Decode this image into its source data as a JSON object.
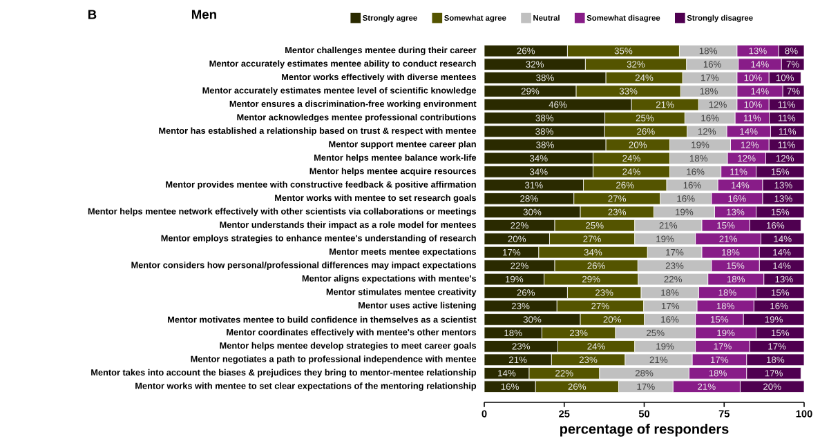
{
  "chart_data": {
    "type": "bar",
    "orientation": "horizontal",
    "stacked": true,
    "title": "Men",
    "annotations": [
      "B"
    ],
    "xlabel": "percentage of responders",
    "categories": [
      "Mentor challenges mentee during their career",
      "Mentor accurately estimates mentee ability to conduct research",
      "Mentor works effectively with diverse mentees",
      "Mentor accurately estimates mentee level of scientific knowledge",
      "Mentor ensures a discrimination-free working environment",
      "Mentor acknowledges mentee professional contributions",
      "Mentor has established a relationship based on trust & respect with mentee",
      "Mentor support mentee career plan",
      "Mentor helps mentee balance work-life",
      "Mentor helps mentee acquire resources",
      "Mentor provides mentee with constructive feedback & positive affirmation",
      "Mentor works with mentee to set research goals",
      "Mentor helps mentee network effectively with other scientists via collaborations or meetings",
      "Mentor understands their impact as a role model for mentees",
      "Mentor employs strategies to enhance mentee's understanding of research",
      "Mentor meets mentee expectations",
      "Mentor considers how personal/professional differences may impact expectations",
      "Mentor aligns expectations with mentee's",
      "Mentor stimulates mentee creativity",
      "Mentor uses active listening",
      "Mentor motivates mentee to build confidence in themselves as a scientist",
      "Mentor coordinates effectively with mentee's other mentors",
      "Mentor helps mentee develop strategies to meet career goals",
      "Mentor negotiates a path to professional independence with mentee",
      "Mentor takes into account the biases & prejudices they bring to mentor-mentee relationship",
      "Mentor works with mentee to set clear expectations of the mentoring relationship"
    ],
    "series": [
      {
        "name": "Strongly agree",
        "color": "#2a2a00",
        "values": [
          26,
          31.6,
          38,
          28.7,
          46,
          37.7,
          37.6,
          38,
          34,
          34,
          31,
          28,
          30,
          22,
          20.4,
          17,
          22,
          18.7,
          26,
          22.7,
          30,
          18,
          23,
          21,
          14,
          16
        ],
        "value_labels": [
          "26%",
          "32%",
          "38%",
          "29%",
          "46%",
          "38%",
          "38%",
          "38%",
          "34%",
          "34%",
          "31%",
          "28%",
          "30%",
          "22%",
          "20%",
          "17%",
          "22%",
          "19%",
          "26%",
          "23%",
          "30%",
          "18%",
          "23%",
          "21%",
          "14%",
          "16%"
        ]
      },
      {
        "name": "Somewhat agree",
        "color": "#545400",
        "values": [
          35,
          31.6,
          24,
          32.7,
          21,
          25.0,
          25.8,
          20,
          24,
          24,
          26,
          27,
          23,
          25,
          26.6,
          34,
          26,
          29.4,
          23,
          27.1,
          20,
          23,
          24,
          23,
          22,
          26
        ],
        "value_labels": [
          "35%",
          "32%",
          "24%",
          "33%",
          "21%",
          "25%",
          "26%",
          "20%",
          "24%",
          "24%",
          "26%",
          "27%",
          "23%",
          "25%",
          "27%",
          "34%",
          "26%",
          "29%",
          "23%",
          "27%",
          "20%",
          "23%",
          "24%",
          "23%",
          "22%",
          "26%"
        ]
      },
      {
        "name": "Neutral",
        "color": "#c0c0c0",
        "values": [
          18,
          16.2,
          17,
          17.6,
          12,
          15.7,
          12.4,
          19,
          18,
          16,
          16,
          16,
          19,
          21,
          19.0,
          17,
          23,
          21.8,
          18,
          16.7,
          16,
          25,
          19,
          21,
          28,
          17
        ],
        "value_labels": [
          "18%",
          "16%",
          "17%",
          "18%",
          "12%",
          "16%",
          "12%",
          "19%",
          "18%",
          "16%",
          "16%",
          "16%",
          "19%",
          "21%",
          "19%",
          "17%",
          "23%",
          "22%",
          "18%",
          "17%",
          "16%",
          "25%",
          "19%",
          "21%",
          "28%",
          "17%"
        ]
      },
      {
        "name": "Somewhat disagree",
        "color": "#881c88",
        "values": [
          13,
          13.5,
          10,
          14.3,
          10,
          10.7,
          13.7,
          12,
          12,
          11,
          14,
          16,
          13,
          15,
          20.5,
          18,
          15,
          17.5,
          18,
          17.8,
          15,
          19,
          17,
          17,
          18,
          21
        ],
        "value_labels": [
          "13%",
          "14%",
          "10%",
          "14%",
          "10%",
          "11%",
          "14%",
          "12%",
          "12%",
          "11%",
          "14%",
          "16%",
          "13%",
          "15%",
          "21%",
          "18%",
          "15%",
          "18%",
          "18%",
          "18%",
          "15%",
          "19%",
          "17%",
          "17%",
          "18%",
          "21%"
        ]
      },
      {
        "name": "Strongly disagree",
        "color": "#4f0050",
        "values": [
          8,
          7.1,
          10,
          6.7,
          11,
          10.9,
          10.5,
          11,
          12,
          15,
          13,
          13,
          15,
          16,
          13.5,
          14,
          14,
          12.6,
          15,
          15.7,
          19,
          15,
          17,
          18,
          17,
          20
        ],
        "value_labels": [
          "8%",
          "7%",
          "10%",
          "7%",
          "11%",
          "11%",
          "11%",
          "11%",
          "12%",
          "15%",
          "13%",
          "13%",
          "15%",
          "16%",
          "14%",
          "14%",
          "14%",
          "13%",
          "15%",
          "16%",
          "19%",
          "15%",
          "17%",
          "18%",
          "17%",
          "20%"
        ]
      }
    ],
    "xlim": [
      0,
      100
    ],
    "xticks": [
      0,
      25,
      50,
      75,
      100
    ],
    "legend": "top",
    "grid": false
  }
}
